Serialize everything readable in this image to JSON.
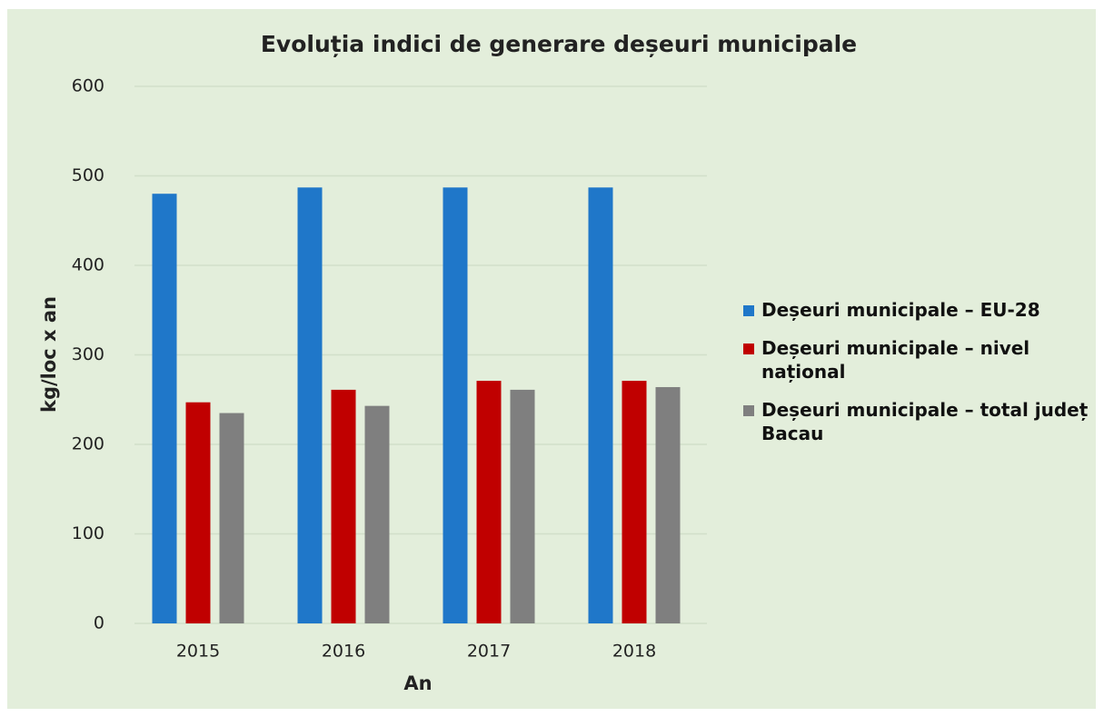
{
  "chart_data": {
    "type": "bar",
    "title": "Evoluția indici de generare deșeuri municipale",
    "x_label": "An",
    "y_label": "kg/loc x an",
    "categories": [
      "2015",
      "2016",
      "2017",
      "2018"
    ],
    "series": [
      {
        "name": "Deșeuri municipale – EU-28",
        "color": "#1f77c9",
        "values": [
          480,
          487,
          487,
          487
        ]
      },
      {
        "name": "Deșeuri municipale – nivel național",
        "color": "#c00000",
        "values": [
          247,
          261,
          271,
          271
        ]
      },
      {
        "name": "Deșeuri municipale – total județ Bacau",
        "color": "#7f7f7f",
        "values": [
          235,
          243,
          261,
          264
        ]
      }
    ],
    "ylim": [
      0,
      600
    ],
    "yticks": [
      0,
      100,
      200,
      300,
      400,
      500,
      600
    ],
    "grid": true,
    "legend": "right"
  }
}
